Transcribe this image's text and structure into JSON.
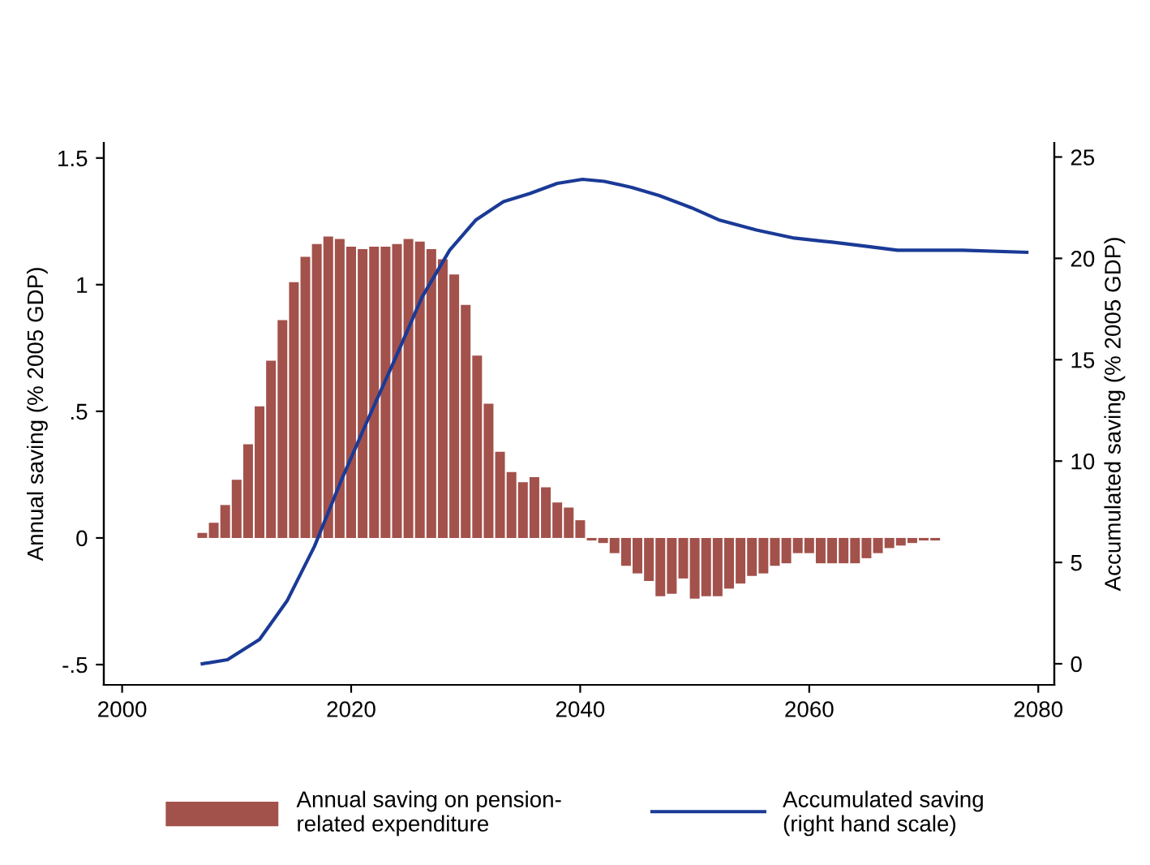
{
  "chart_data": {
    "type": "bar",
    "ylabel": "Annual saving (% 2005 GDP)",
    "y2label": "Accumulated saving (% 2005 GDP)",
    "x": [
      2007,
      2008,
      2009,
      2010,
      2011,
      2012,
      2013,
      2014,
      2015,
      2016,
      2017,
      2018,
      2019,
      2020,
      2021,
      2022,
      2023,
      2024,
      2025,
      2026,
      2027,
      2028,
      2029,
      2030,
      2031,
      2032,
      2033,
      2034,
      2035,
      2036,
      2037,
      2038,
      2039,
      2040,
      2041,
      2042,
      2043,
      2044,
      2045,
      2046,
      2047,
      2048,
      2049,
      2050,
      2051,
      2052,
      2053,
      2054,
      2055,
      2056,
      2057,
      2058,
      2059,
      2060,
      2061,
      2062,
      2063,
      2064,
      2065,
      2066,
      2067,
      2068,
      2069,
      2070,
      2071,
      2072,
      2073,
      2074,
      2075,
      2076,
      2077,
      2078,
      2079
    ],
    "series": [
      {
        "name": "Annual saving on pension-\nrelated expenditure",
        "color": "#a3514b",
        "values": [
          0.02,
          0.06,
          0.13,
          0.23,
          0.37,
          0.52,
          0.7,
          0.86,
          1.01,
          1.11,
          1.16,
          1.19,
          1.18,
          1.15,
          1.14,
          1.15,
          1.15,
          1.16,
          1.18,
          1.17,
          1.14,
          1.1,
          1.04,
          0.92,
          0.72,
          0.53,
          0.34,
          0.26,
          0.22,
          0.24,
          0.2,
          0.14,
          0.12,
          0.07,
          -0.01,
          -0.02,
          -0.06,
          -0.11,
          -0.14,
          -0.17,
          -0.23,
          -0.22,
          -0.16,
          -0.24,
          -0.23,
          -0.23,
          -0.2,
          -0.18,
          -0.15,
          -0.14,
          -0.11,
          -0.1,
          -0.06,
          -0.06,
          -0.1,
          -0.1,
          -0.1,
          -0.1,
          -0.08,
          -0.06,
          -0.04,
          -0.03,
          -0.02,
          -0.01,
          -0.01,
          0,
          0,
          0,
          0,
          0,
          0,
          0,
          0
        ]
      },
      {
        "name": "Accumulated saving\n(right hand scale)",
        "type": "line",
        "axis": "y2",
        "color": "#1a3a96",
        "x": [
          2007,
          2009.2,
          2012,
          2014.4,
          2016.8,
          2019.1,
          2021.5,
          2023.8,
          2026.2,
          2028.6,
          2030.9,
          2033.3,
          2035.6,
          2038,
          2040.2,
          2042.1,
          2044.5,
          2046.9,
          2049.7,
          2052.1,
          2055.4,
          2058.7,
          2062,
          2064.9,
          2067.7,
          2073.4,
          2079
        ],
        "values": [
          0,
          0.2,
          1.2,
          3.1,
          5.8,
          9.0,
          12.1,
          15.0,
          18.1,
          20.4,
          21.9,
          22.8,
          23.2,
          23.7,
          23.9,
          23.8,
          23.5,
          23.1,
          22.5,
          21.9,
          21.4,
          21.0,
          20.8,
          20.6,
          20.4,
          20.4,
          20.3
        ]
      }
    ],
    "xlim": [
      1998.4,
      2081.4
    ],
    "xticks": [
      2000,
      2020,
      2040,
      2060,
      2080
    ],
    "ylim": [
      -0.58,
      1.56
    ],
    "yticks": [
      {
        "value": -0.5,
        "label": "-.5"
      },
      0,
      {
        "value": 0.5,
        "label": ".5"
      },
      1,
      1.5
    ],
    "y2lim": [
      -1.04,
      25.7
    ],
    "y2ticks": [
      0,
      5,
      10,
      15,
      20,
      25
    ],
    "grid": false,
    "legend": "bottom"
  }
}
